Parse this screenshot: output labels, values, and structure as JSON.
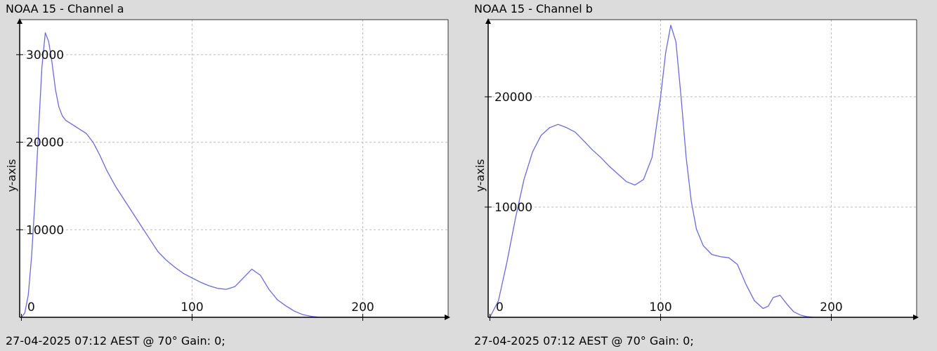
{
  "chart_data": [
    {
      "type": "line",
      "title": "NOAA 15 - Channel a",
      "footer": "27-04-2025 07:12 AEST @ 70° Gain: 0;",
      "xlabel": "",
      "ylabel": "y-axis",
      "xlim": [
        -1,
        250
      ],
      "ylim": [
        0,
        34000
      ],
      "x_ticks": [
        "0",
        "100",
        "200"
      ],
      "y_ticks": [
        "10000",
        "20000",
        "30000"
      ],
      "grid": true,
      "color": "#6a6ae0",
      "series": [
        {
          "x": [
            0,
            2,
            4,
            6,
            8,
            10,
            12,
            14,
            16,
            18,
            20,
            22,
            24,
            26,
            30,
            34,
            38,
            42,
            46,
            50,
            55,
            60,
            65,
            70,
            75,
            80,
            85,
            90,
            95,
            100,
            105,
            110,
            115,
            120,
            125,
            130,
            135,
            140,
            145,
            150,
            155,
            160,
            165,
            170,
            175,
            180,
            185,
            190,
            195,
            200
          ],
          "y": [
            0,
            500,
            2500,
            7000,
            13500,
            21000,
            28500,
            32500,
            31500,
            29000,
            26000,
            24000,
            23000,
            22500,
            22000,
            21500,
            21000,
            20000,
            18500,
            16800,
            15000,
            13500,
            12000,
            10500,
            9000,
            7500,
            6500,
            5700,
            5000,
            4500,
            4000,
            3600,
            3300,
            3200,
            3500,
            4500,
            5500,
            4800,
            3200,
            2000,
            1300,
            700,
            300,
            100,
            0,
            0,
            0,
            0,
            0,
            0
          ]
        }
      ]
    },
    {
      "type": "line",
      "title": "NOAA 15 - Channel b",
      "footer": "27-04-2025 07:12 AEST @ 70° Gain: 0;",
      "xlabel": "",
      "ylabel": "y-axis",
      "xlim": [
        -1,
        250
      ],
      "ylim": [
        0,
        27000
      ],
      "x_ticks": [
        "0",
        "100",
        "200"
      ],
      "y_ticks": [
        "10000",
        "20000"
      ],
      "grid": true,
      "color": "#6a6ae0",
      "series": [
        {
          "x": [
            0,
            5,
            10,
            15,
            20,
            25,
            30,
            35,
            40,
            45,
            50,
            55,
            60,
            65,
            70,
            75,
            80,
            85,
            90,
            95,
            100,
            103,
            106,
            109,
            112,
            115,
            118,
            121,
            125,
            130,
            135,
            140,
            145,
            150,
            155,
            160,
            163,
            166,
            170,
            174,
            178,
            182,
            186,
            190,
            195,
            200
          ],
          "y": [
            0,
            1500,
            5000,
            9000,
            12500,
            15000,
            16500,
            17200,
            17500,
            17200,
            16800,
            16000,
            15200,
            14500,
            13700,
            13000,
            12300,
            12000,
            12500,
            14500,
            20000,
            24000,
            26500,
            25000,
            20000,
            14500,
            10500,
            8000,
            6500,
            5700,
            5500,
            5400,
            4800,
            3000,
            1500,
            800,
            1000,
            1800,
            2000,
            1200,
            500,
            200,
            50,
            0,
            0,
            0
          ]
        }
      ]
    }
  ]
}
